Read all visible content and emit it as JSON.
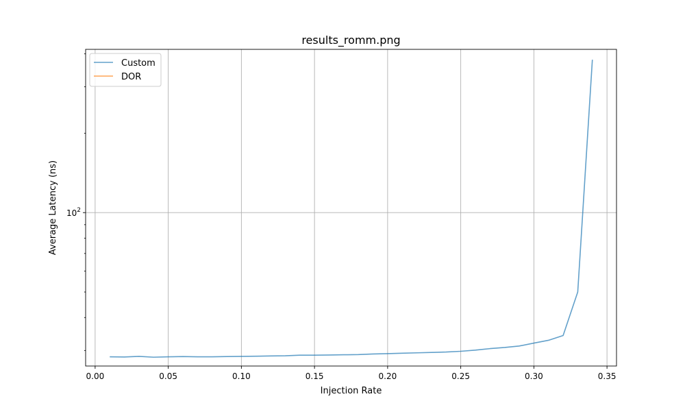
{
  "chart_data": {
    "type": "line",
    "title": "results_romm.png",
    "xlabel": "Injection Rate",
    "ylabel": "Average Latency (ns)",
    "xlim": [
      -0.0065,
      0.3565
    ],
    "ylim": [
      26.2,
      416
    ],
    "yscale": "log",
    "grid": true,
    "legend_position": "top-left",
    "x_ticks": [
      0.0,
      0.05,
      0.1,
      0.15,
      0.2,
      0.25,
      0.3,
      0.35
    ],
    "x_tick_labels": [
      "0.00",
      "0.05",
      "0.10",
      "0.15",
      "0.20",
      "0.25",
      "0.30",
      "0.35"
    ],
    "y_major_ticks": [
      100
    ],
    "y_major_tick_labels": [
      {
        "base": "10",
        "exp": "2"
      }
    ],
    "y_minor_ticks": [
      30,
      40,
      50,
      60,
      70,
      80,
      90,
      200,
      300,
      400
    ],
    "series": [
      {
        "name": "Custom",
        "color": "#1f77b4",
        "x": [
          0.01,
          0.02,
          0.03,
          0.04,
          0.05,
          0.06,
          0.07,
          0.08,
          0.09,
          0.1,
          0.11,
          0.12,
          0.13,
          0.14,
          0.15,
          0.16,
          0.17,
          0.18,
          0.19,
          0.2,
          0.21,
          0.22,
          0.23,
          0.24,
          0.25,
          0.26,
          0.27,
          0.28,
          0.29,
          0.3,
          0.31,
          0.32,
          0.33,
          0.34
        ],
        "y": [
          28.4,
          28.35,
          28.5,
          28.3,
          28.4,
          28.45,
          28.4,
          28.4,
          28.45,
          28.5,
          28.55,
          28.6,
          28.65,
          28.8,
          28.8,
          28.85,
          28.9,
          28.95,
          29.1,
          29.2,
          29.3,
          29.4,
          29.5,
          29.6,
          29.8,
          30.1,
          30.5,
          30.8,
          31.2,
          32.0,
          32.8,
          34.2,
          50.0,
          380.0
        ]
      },
      {
        "name": "DOR",
        "color": "#ff7f0e",
        "x": [],
        "y": []
      }
    ]
  }
}
